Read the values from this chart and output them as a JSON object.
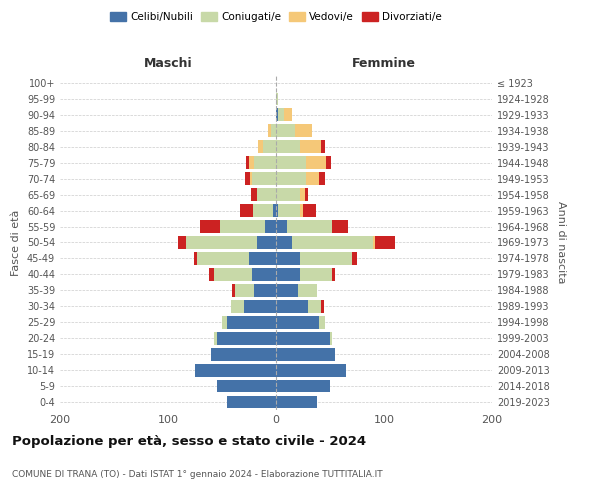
{
  "age_groups": [
    "0-4",
    "5-9",
    "10-14",
    "15-19",
    "20-24",
    "25-29",
    "30-34",
    "35-39",
    "40-44",
    "45-49",
    "50-54",
    "55-59",
    "60-64",
    "65-69",
    "70-74",
    "75-79",
    "80-84",
    "85-89",
    "90-94",
    "95-99",
    "100+"
  ],
  "birth_years": [
    "2019-2023",
    "2014-2018",
    "2009-2013",
    "2004-2008",
    "1999-2003",
    "1994-1998",
    "1989-1993",
    "1984-1988",
    "1979-1983",
    "1974-1978",
    "1969-1973",
    "1964-1968",
    "1959-1963",
    "1954-1958",
    "1949-1953",
    "1944-1948",
    "1939-1943",
    "1934-1938",
    "1929-1933",
    "1924-1928",
    "≤ 1923"
  ],
  "maschi": {
    "celibi": [
      45,
      55,
      75,
      60,
      55,
      45,
      30,
      20,
      22,
      25,
      18,
      10,
      3,
      0,
      0,
      0,
      0,
      0,
      0,
      0,
      0
    ],
    "coniugati": [
      0,
      0,
      0,
      0,
      2,
      5,
      12,
      18,
      35,
      48,
      65,
      42,
      18,
      18,
      22,
      20,
      12,
      5,
      0,
      0,
      0
    ],
    "vedovi": [
      0,
      0,
      0,
      0,
      0,
      0,
      0,
      0,
      0,
      0,
      0,
      0,
      0,
      0,
      2,
      5,
      5,
      2,
      0,
      0,
      0
    ],
    "divorziati": [
      0,
      0,
      0,
      0,
      0,
      0,
      0,
      3,
      5,
      3,
      8,
      18,
      12,
      5,
      5,
      3,
      0,
      0,
      0,
      0,
      0
    ]
  },
  "femmine": {
    "nubili": [
      38,
      50,
      65,
      55,
      50,
      40,
      30,
      20,
      22,
      22,
      15,
      10,
      2,
      0,
      0,
      0,
      0,
      0,
      2,
      0,
      0
    ],
    "coniugate": [
      0,
      0,
      0,
      0,
      2,
      5,
      12,
      18,
      30,
      48,
      75,
      42,
      20,
      22,
      28,
      28,
      22,
      18,
      5,
      2,
      0
    ],
    "vedove": [
      0,
      0,
      0,
      0,
      0,
      0,
      0,
      0,
      0,
      0,
      2,
      0,
      3,
      5,
      12,
      18,
      20,
      15,
      8,
      0,
      0
    ],
    "divorziate": [
      0,
      0,
      0,
      0,
      0,
      0,
      2,
      0,
      3,
      5,
      18,
      15,
      12,
      3,
      5,
      5,
      3,
      0,
      0,
      0,
      0
    ]
  },
  "colors": {
    "celibi": "#4472a8",
    "coniugati": "#c8d9a8",
    "vedovi": "#f5c878",
    "divorziati": "#cc2222"
  },
  "title": "Popolazione per età, sesso e stato civile - 2024",
  "subtitle": "COMUNE DI TRANA (TO) - Dati ISTAT 1° gennaio 2024 - Elaborazione TUTTITALIA.IT",
  "xlabel_left": "Maschi",
  "xlabel_right": "Femmine",
  "ylabel_left": "Fasce di età",
  "ylabel_right": "Anni di nascita",
  "xlim": 200,
  "legend_labels": [
    "Celibi/Nubili",
    "Coniugati/e",
    "Vedovi/e",
    "Divorziati/e"
  ],
  "grid_color": "#cccccc"
}
